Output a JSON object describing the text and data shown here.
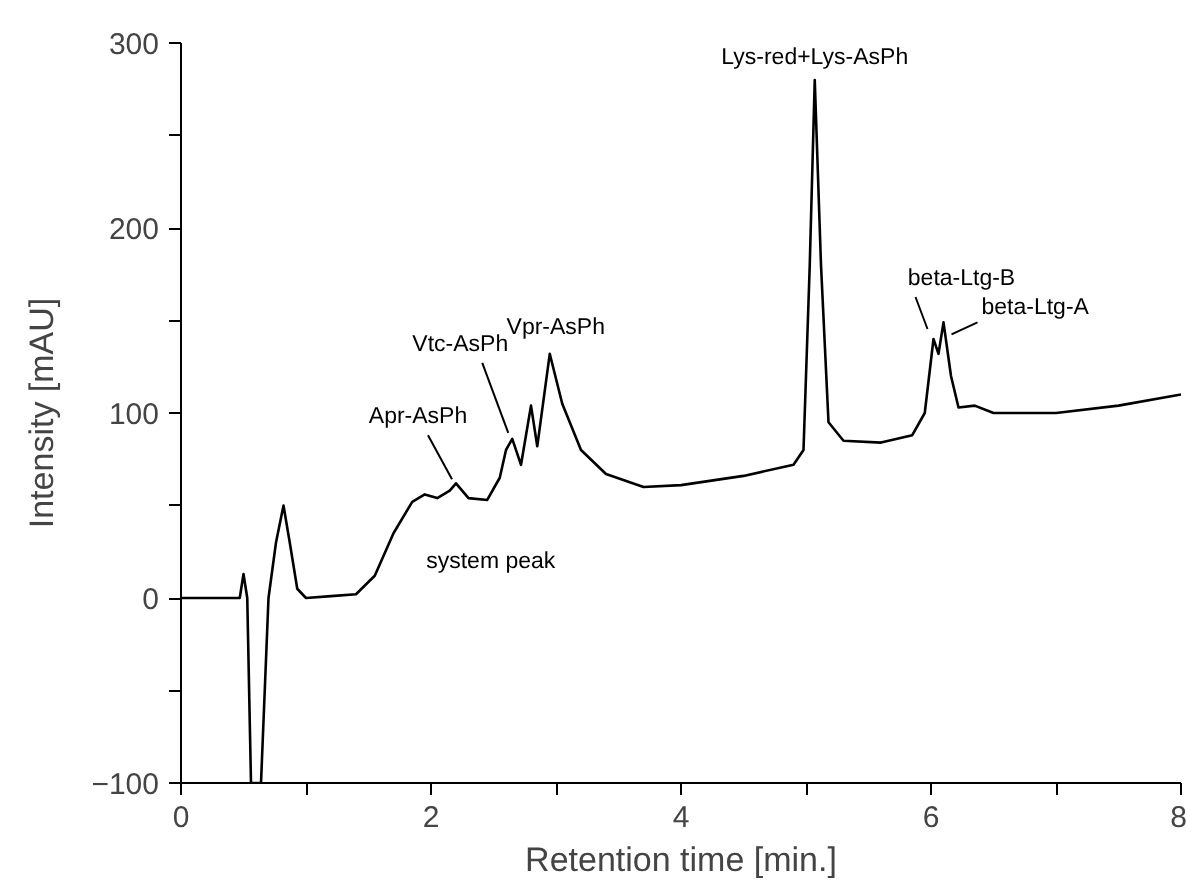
{
  "chart_data": {
    "type": "line",
    "xlabel": "Retention time [min.]",
    "ylabel": "Intensity [mAU]",
    "xlim": [
      0,
      8
    ],
    "ylim": [
      -100,
      300
    ],
    "xticks": [
      0,
      {
        "value": 1,
        "label": null
      },
      2,
      {
        "value": 3,
        "label": null
      },
      4,
      {
        "value": 5,
        "label": null
      },
      6,
      {
        "value": 7,
        "label": null
      },
      8
    ],
    "yticks": [
      -100,
      {
        "value": -50,
        "label": null
      },
      0,
      {
        "value": 50,
        "label": null
      },
      100,
      {
        "value": 150,
        "label": null
      },
      200,
      {
        "value": 250,
        "label": null
      },
      300
    ],
    "grid": false,
    "marker": "none",
    "line_style": "solid",
    "series": [
      {
        "color": "#000000",
        "x": [
          0,
          0.4,
          0.47,
          0.5,
          0.53,
          0.56,
          0.64,
          0.7,
          0.76,
          0.82,
          0.87,
          0.93,
          1.0,
          1.2,
          1.4,
          1.55,
          1.7,
          1.85,
          1.95,
          2.05,
          2.15,
          2.2,
          2.3,
          2.45,
          2.55,
          2.6,
          2.65,
          2.72,
          2.8,
          2.85,
          2.95,
          3.05,
          3.2,
          3.4,
          3.7,
          4.0,
          4.5,
          4.9,
          4.98,
          5.03,
          5.07,
          5.12,
          5.18,
          5.3,
          5.6,
          5.85,
          5.95,
          6.02,
          6.06,
          6.1,
          6.16,
          6.22,
          6.35,
          6.5,
          7.0,
          7.5,
          8.0
        ],
        "values": [
          0,
          0,
          0,
          13,
          0,
          -100,
          -100,
          0,
          30,
          50,
          30,
          5,
          0,
          1,
          2,
          12,
          35,
          52,
          56,
          54,
          58,
          62,
          54,
          53,
          65,
          80,
          86,
          72,
          104,
          82,
          132,
          105,
          80,
          67,
          60,
          61,
          66,
          72,
          80,
          180,
          280,
          180,
          95,
          85,
          84,
          88,
          100,
          140,
          132,
          149,
          120,
          103,
          104,
          100,
          100,
          104,
          110
        ]
      }
    ],
    "annotations": [
      {
        "text": "Apr-AsPh",
        "x": 2.2,
        "y": 62
      },
      {
        "text": "Vtc-AsPh",
        "x": 2.65,
        "y": 86
      },
      {
        "text": "Vpr-AsPh",
        "x": 2.95,
        "y": 132
      },
      {
        "text": "Lys-red+Lys-AsPh",
        "x": 5.07,
        "y": 280
      },
      {
        "text": "beta-Ltg-B",
        "x": 6.02,
        "y": 140
      },
      {
        "text": "beta-Ltg-A",
        "x": 6.1,
        "y": 149
      },
      {
        "text": "system peak",
        "x": 1.95,
        "y": 56
      }
    ]
  }
}
